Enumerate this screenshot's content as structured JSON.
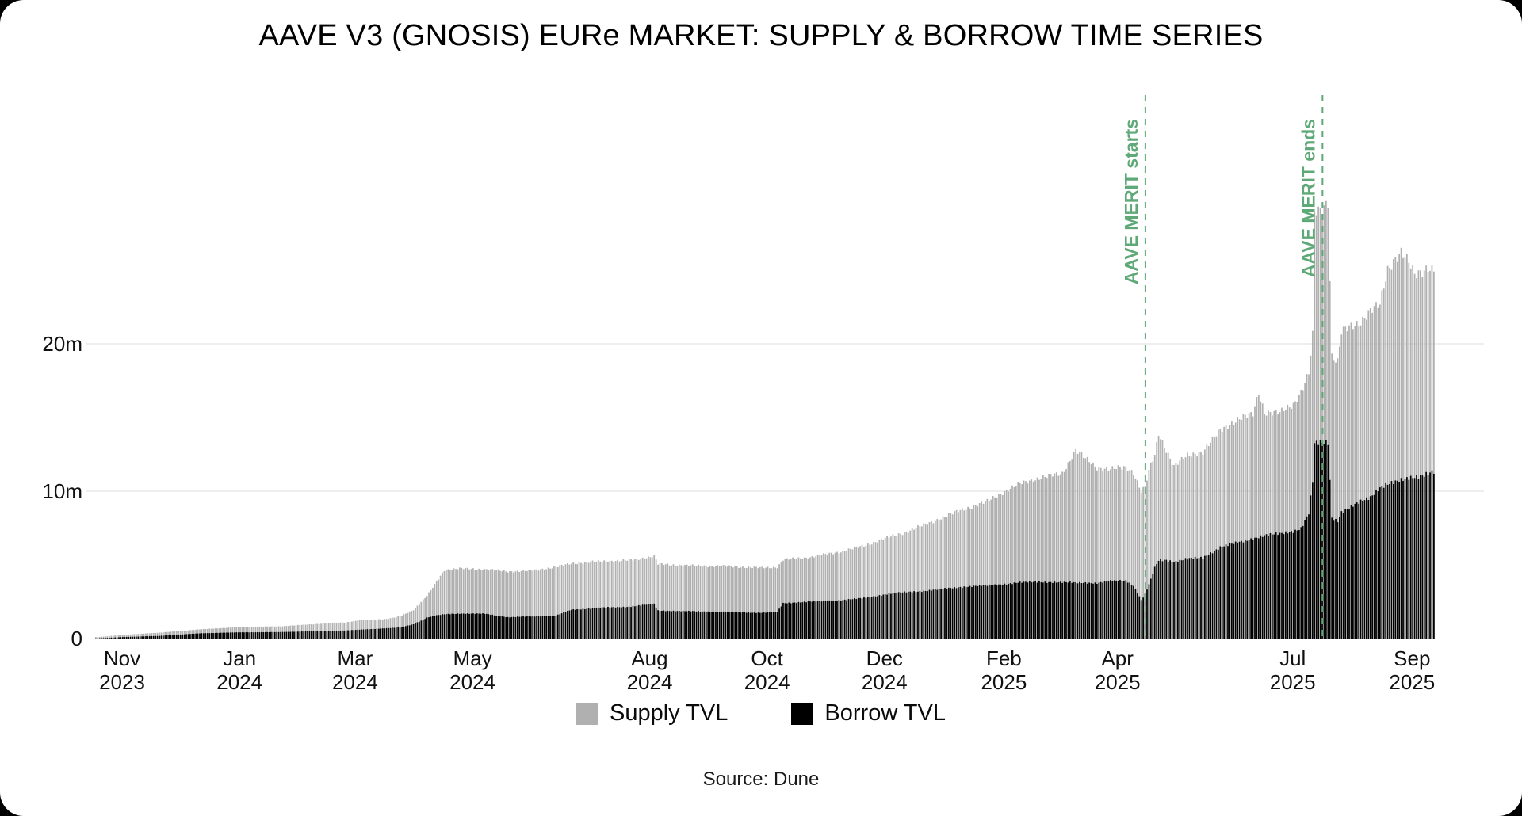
{
  "page": {
    "background": "#000000",
    "card_background": "#ffffff"
  },
  "title": "AAVE V3 (GNOSIS) EURe MARKET: SUPPLY & BORROW TIME SERIES",
  "source": "Source: Dune",
  "legend": [
    {
      "label": "Supply TVL",
      "color": "#b0b0b0"
    },
    {
      "label": "Borrow TVL",
      "color": "#000000"
    }
  ],
  "annotations": [
    {
      "label": "AAVE MERIT starts",
      "date": "2025-04-15",
      "color": "#5fa877"
    },
    {
      "label": "AAVE MERIT ends",
      "date": "2025-07-16",
      "color": "#5fa877"
    }
  ],
  "chart_data": {
    "type": "bar",
    "title": "AAVE V3 (GNOSIS) EURe MARKET: SUPPLY & BORROW TIME SERIES",
    "xlabel": "",
    "ylabel": "",
    "unit": "EURe (millions)",
    "frequency": "daily bars (values sampled at anchor dates below, interpolated between)",
    "grid": "horizontal only",
    "legend_position": "bottom center",
    "ylim": [
      0,
      31
    ],
    "y_axis": {
      "ticks": [
        {
          "label": "0",
          "value": 0
        },
        {
          "label": "10m",
          "value": 10
        },
        {
          "label": "20m",
          "value": 20
        }
      ]
    },
    "x_axis": {
      "start": "2023-10-18",
      "end": "2025-09-12",
      "ticks": [
        {
          "month": "Nov",
          "year": "2023",
          "date": "2023-11-01"
        },
        {
          "month": "Jan",
          "year": "2024",
          "date": "2024-01-01"
        },
        {
          "month": "Mar",
          "year": "2024",
          "date": "2024-03-01"
        },
        {
          "month": "May",
          "year": "2024",
          "date": "2024-05-01"
        },
        {
          "month": "Aug",
          "year": "2024",
          "date": "2024-08-01"
        },
        {
          "month": "Oct",
          "year": "2024",
          "date": "2024-10-01"
        },
        {
          "month": "Dec",
          "year": "2024",
          "date": "2024-12-01"
        },
        {
          "month": "Feb",
          "year": "2025",
          "date": "2025-02-01"
        },
        {
          "month": "Apr",
          "year": "2025",
          "date": "2025-04-01"
        },
        {
          "month": "Jul",
          "year": "2025",
          "date": "2025-07-01"
        },
        {
          "month": "Sep",
          "year": "2025",
          "date": "2025-09-01"
        }
      ]
    },
    "dates": [
      "2023-10-19",
      "2023-11-01",
      "2023-11-20",
      "2023-12-12",
      "2024-01-01",
      "2024-01-22",
      "2024-02-18",
      "2024-02-25",
      "2024-03-03",
      "2024-03-17",
      "2024-03-24",
      "2024-03-31",
      "2024-04-07",
      "2024-04-11",
      "2024-04-16",
      "2024-04-24",
      "2024-05-07",
      "2024-05-19",
      "2024-05-31",
      "2024-06-13",
      "2024-06-21",
      "2024-07-07",
      "2024-07-20",
      "2024-07-30",
      "2024-08-03",
      "2024-08-05",
      "2024-08-22",
      "2024-09-11",
      "2024-09-27",
      "2024-10-06",
      "2024-10-09",
      "2024-10-22",
      "2024-11-08",
      "2024-11-20",
      "2024-12-01",
      "2024-12-11",
      "2024-12-23",
      "2025-01-09",
      "2025-01-23",
      "2025-02-01",
      "2025-02-09",
      "2025-02-19",
      "2025-03-03",
      "2025-03-10",
      "2025-03-15",
      "2025-03-21",
      "2025-03-28",
      "2025-04-05",
      "2025-04-09",
      "2025-04-13",
      "2025-04-15",
      "2025-04-18",
      "2025-04-20",
      "2025-04-22",
      "2025-04-26",
      "2025-04-30",
      "2025-05-07",
      "2025-05-15",
      "2025-05-24",
      "2025-06-02",
      "2025-06-10",
      "2025-06-13",
      "2025-06-16",
      "2025-06-24",
      "2025-07-01",
      "2025-07-05",
      "2025-07-09",
      "2025-07-11",
      "2025-07-12",
      "2025-07-15",
      "2025-07-19",
      "2025-07-21",
      "2025-07-24",
      "2025-07-26",
      "2025-07-29",
      "2025-08-04",
      "2025-08-10",
      "2025-08-15",
      "2025-08-19",
      "2025-08-23",
      "2025-08-26",
      "2025-08-30",
      "2025-09-02",
      "2025-09-06",
      "2025-09-09",
      "2025-09-11"
    ],
    "series": [
      {
        "name": "Supply TVL",
        "color": "#b0b0b0",
        "values": [
          0.1,
          0.25,
          0.4,
          0.63,
          0.78,
          0.83,
          1.06,
          1.1,
          1.25,
          1.33,
          1.5,
          1.95,
          2.9,
          3.65,
          4.65,
          4.75,
          4.7,
          4.55,
          4.6,
          4.85,
          5.1,
          5.25,
          5.3,
          5.5,
          5.6,
          5.05,
          4.95,
          4.9,
          4.8,
          4.85,
          5.35,
          5.5,
          5.9,
          6.3,
          6.8,
          7.2,
          7.8,
          8.7,
          9.3,
          10.0,
          10.5,
          10.9,
          11.2,
          12.8,
          12.2,
          11.6,
          11.5,
          11.6,
          11.3,
          10.0,
          10.3,
          11.8,
          12.4,
          13.9,
          12.8,
          11.7,
          12.4,
          12.7,
          14.1,
          14.9,
          15.2,
          16.7,
          15.4,
          15.3,
          15.9,
          16.8,
          18.0,
          20.5,
          28.8,
          29.0,
          29.7,
          19.2,
          18.8,
          20.8,
          21.0,
          21.4,
          22.3,
          22.6,
          25.0,
          25.9,
          26.3,
          25.5,
          24.6,
          24.9,
          25.3,
          25.1
        ]
      },
      {
        "name": "Borrow TVL",
        "color": "#000000",
        "values": [
          0.01,
          0.1,
          0.18,
          0.36,
          0.42,
          0.44,
          0.53,
          0.55,
          0.6,
          0.7,
          0.75,
          0.97,
          1.42,
          1.55,
          1.65,
          1.7,
          1.68,
          1.45,
          1.5,
          1.55,
          1.95,
          2.1,
          2.15,
          2.3,
          2.35,
          1.9,
          1.85,
          1.8,
          1.75,
          1.8,
          2.4,
          2.5,
          2.6,
          2.75,
          3.0,
          3.15,
          3.25,
          3.5,
          3.6,
          3.7,
          3.8,
          3.85,
          3.8,
          3.8,
          3.8,
          3.75,
          3.9,
          3.95,
          3.6,
          2.6,
          3.0,
          4.0,
          4.8,
          5.3,
          5.35,
          5.2,
          5.4,
          5.5,
          6.2,
          6.5,
          6.8,
          6.9,
          7.0,
          7.1,
          7.3,
          7.5,
          8.5,
          10.6,
          13.2,
          13.25,
          13.3,
          8.2,
          8.0,
          8.6,
          8.8,
          9.2,
          9.6,
          10.3,
          10.5,
          10.6,
          10.7,
          10.9,
          11.0,
          11.1,
          11.25,
          11.3
        ]
      }
    ]
  }
}
